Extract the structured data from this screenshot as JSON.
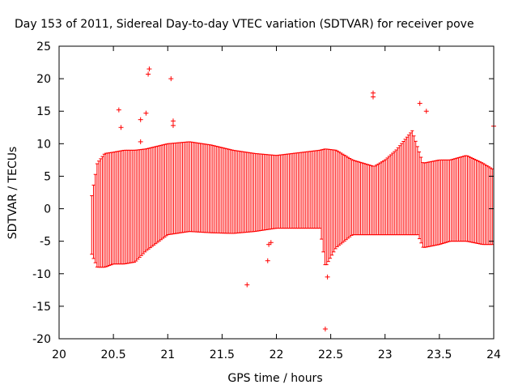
{
  "chart_data": {
    "type": "scatter",
    "title": "Day 153 of 2011, Sidereal Day-to-day VTEC variation (SDTVAR) for receiver pove",
    "xlabel": "GPS time / hours",
    "ylabel": "SDTVAR / TECUs",
    "xlim": [
      20,
      24
    ],
    "ylim": [
      -20,
      25
    ],
    "xticks": [
      20,
      20.5,
      21,
      21.5,
      22,
      22.5,
      23,
      23.5,
      24
    ],
    "xtick_labels": [
      "20",
      "20.5",
      "21",
      "21.5",
      "22",
      "22.5",
      "23",
      "23.5",
      "24"
    ],
    "yticks": [
      -20,
      -15,
      -10,
      -5,
      0,
      5,
      10,
      15,
      20,
      25
    ],
    "ytick_labels": [
      "-20",
      "-15",
      "-10",
      "-5",
      "0",
      "5",
      "10",
      "15",
      "20",
      "25"
    ],
    "grid": false,
    "series_color": "#ff0000",
    "error_bar_envelope": {
      "description": "approximate upper/lower extent of the dense red error-bar band",
      "x": [
        20.3,
        20.35,
        20.42,
        20.5,
        20.6,
        20.7,
        20.8,
        21.0,
        21.2,
        21.4,
        21.6,
        21.8,
        22.0,
        22.2,
        22.4,
        22.45,
        22.55,
        22.7,
        22.9,
        23.0,
        23.1,
        23.25,
        23.3,
        23.35,
        23.5,
        23.6,
        23.75,
        23.9,
        24.0
      ],
      "upper": [
        2,
        7,
        8.5,
        8.7,
        9.0,
        9.0,
        9.2,
        10.0,
        10.3,
        9.8,
        9.0,
        8.5,
        8.2,
        8.6,
        9.0,
        9.2,
        9.0,
        7.5,
        6.5,
        7.5,
        9.0,
        12.0,
        9.5,
        7.0,
        7.5,
        7.5,
        8.2,
        7.0,
        6.0
      ],
      "lower": [
        -7,
        -9,
        -9,
        -8.5,
        -8.5,
        -8.2,
        -6.5,
        -4.0,
        -3.5,
        -3.7,
        -3.8,
        -3.5,
        -3.0,
        -3.0,
        -3.0,
        -9.0,
        -6.0,
        -4.0,
        -4.0,
        -4.0,
        -4.0,
        -4.0,
        -4.0,
        -6.0,
        -5.5,
        -5.0,
        -5.0,
        -5.5,
        -5.5
      ]
    },
    "outlier_points": [
      {
        "x": 20.55,
        "y": 15.2
      },
      {
        "x": 20.57,
        "y": 12.5
      },
      {
        "x": 20.75,
        "y": 13.7
      },
      {
        "x": 20.75,
        "y": 10.3
      },
      {
        "x": 20.83,
        "y": 21.5
      },
      {
        "x": 20.82,
        "y": 20.7
      },
      {
        "x": 21.03,
        "y": 20.0
      },
      {
        "x": 21.05,
        "y": 13.5
      },
      {
        "x": 21.05,
        "y": 12.8
      },
      {
        "x": 21.73,
        "y": -11.7
      },
      {
        "x": 21.92,
        "y": -8.0
      },
      {
        "x": 21.93,
        "y": -5.5
      },
      {
        "x": 21.95,
        "y": -5.2
      },
      {
        "x": 22.45,
        "y": -18.5
      },
      {
        "x": 22.47,
        "y": -10.5
      },
      {
        "x": 22.89,
        "y": 17.8
      },
      {
        "x": 22.89,
        "y": 17.2
      },
      {
        "x": 24.0,
        "y": 12.7
      },
      {
        "x": 23.32,
        "y": 16.2
      },
      {
        "x": 23.38,
        "y": 15.0
      },
      {
        "x": 20.8,
        "y": 14.7
      }
    ]
  }
}
